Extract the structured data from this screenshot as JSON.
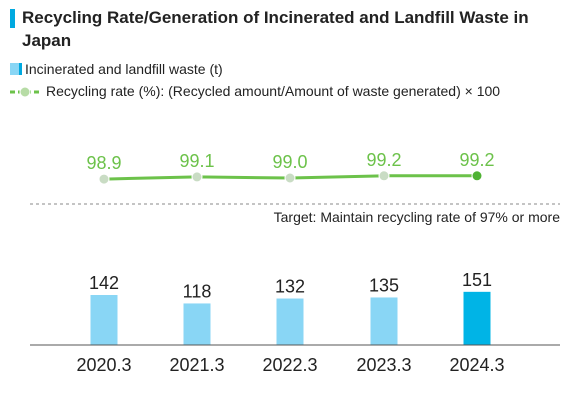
{
  "chart_data": {
    "title": "Recycling Rate/Generation of Incinerated and Landfill Waste in Japan",
    "categories": [
      "2020.3",
      "2021.3",
      "2022.3",
      "2023.3",
      "2024.3"
    ],
    "series": [
      {
        "name": "Incinerated and landfill waste (t)",
        "type": "bar",
        "values": [
          142,
          118,
          132,
          135,
          151
        ],
        "color": "#89d6f5",
        "highlight_color": "#00b4e6",
        "highlight_index": 4
      },
      {
        "name": "Recycling rate (%): (Recycled amount/Amount of waste generated) × 100",
        "type": "line",
        "values": [
          98.9,
          99.1,
          99.0,
          99.2,
          99.2
        ],
        "labels": [
          "98.9",
          "99.1",
          "99.0",
          "99.2",
          "99.2"
        ],
        "color": "#6cc24a",
        "marker_color": "#c9dcc4",
        "highlight_marker_color": "#4fb233"
      }
    ],
    "annotation": "Target: Maintain recycling rate of 97% or more",
    "bar_ylim": [
      0,
      250
    ],
    "line_ylim": [
      97,
      101
    ],
    "grid": false
  }
}
